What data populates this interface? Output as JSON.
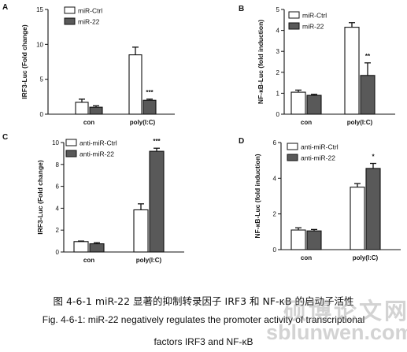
{
  "chart_data": [
    {
      "type": "bar",
      "panel_label": "A",
      "ylabel": "IRF3-Luc (Fold change)",
      "categories": [
        "con",
        "poly(I:C)"
      ],
      "ylim": [
        0,
        15
      ],
      "yticks": [
        0,
        5,
        10,
        15
      ],
      "series": [
        {
          "name": "miR-Ctrl",
          "fill": "#ffffff",
          "values": [
            1.7,
            8.5
          ],
          "errors": [
            0.45,
            1.1
          ]
        },
        {
          "name": "miR-22",
          "fill": "#595959",
          "values": [
            1.0,
            2.0
          ],
          "errors": [
            0.2,
            0.15
          ]
        }
      ],
      "annotations": [
        {
          "series": 1,
          "category": 1,
          "text": "***"
        }
      ],
      "legend_position": "top-left"
    },
    {
      "type": "bar",
      "panel_label": "B",
      "ylabel": "NF-κB-Luc (fold induction)",
      "categories": [
        "con",
        "poly(I:C)"
      ],
      "ylim": [
        0,
        5
      ],
      "yticks": [
        0,
        1,
        2,
        3,
        4,
        5
      ],
      "series": [
        {
          "name": "miR-Ctrl",
          "fill": "#ffffff",
          "values": [
            1.05,
            4.15
          ],
          "errors": [
            0.1,
            0.22
          ]
        },
        {
          "name": "miR-22",
          "fill": "#595959",
          "values": [
            0.9,
            1.85
          ],
          "errors": [
            0.05,
            0.6
          ]
        }
      ],
      "annotations": [
        {
          "series": 1,
          "category": 1,
          "text": "**"
        }
      ],
      "legend_position": "top-left"
    },
    {
      "type": "bar",
      "panel_label": "C",
      "ylabel": "IRF3-Luc (Fold change)",
      "categories": [
        "con",
        "poly(I:C)"
      ],
      "ylim": [
        0,
        10
      ],
      "yticks": [
        0,
        2,
        4,
        6,
        8,
        10
      ],
      "series": [
        {
          "name": "anti-miR-Ctrl",
          "fill": "#ffffff",
          "values": [
            0.95,
            3.85
          ],
          "errors": [
            0.05,
            0.55
          ]
        },
        {
          "name": "anti-miR-22",
          "fill": "#595959",
          "values": [
            0.75,
            9.2
          ],
          "errors": [
            0.1,
            0.28
          ]
        }
      ],
      "annotations": [
        {
          "series": 1,
          "category": 1,
          "text": "***"
        }
      ],
      "legend_position": "top-left"
    },
    {
      "type": "bar",
      "panel_label": "D",
      "ylabel": "NF-κB-Luc (fold induction)",
      "categories": [
        "con",
        "poly(I:C)"
      ],
      "ylim": [
        0,
        6
      ],
      "yticks": [
        0,
        2,
        4,
        6
      ],
      "series": [
        {
          "name": "anti-miR-Ctrl",
          "fill": "#ffffff",
          "values": [
            1.1,
            3.5
          ],
          "errors": [
            0.12,
            0.2
          ]
        },
        {
          "name": "anti-miR-22",
          "fill": "#595959",
          "values": [
            1.05,
            4.55
          ],
          "errors": [
            0.08,
            0.28
          ]
        }
      ],
      "annotations": [
        {
          "series": 1,
          "category": 1,
          "text": "*"
        }
      ],
      "legend_position": "top-left"
    }
  ],
  "caption": {
    "line1": "图 4-6-1 miR-22 显著的抑制转录因子 IRF3 和 NF-κB 的启动子活性",
    "line2": "Fig. 4-6-1: miR-22 negatively regulates the promoter activity of transcriptional",
    "line3": "factors IRF3 and NF-κB"
  },
  "watermark": {
    "text1": "硕博论文网",
    "text2": "sblunwen.com"
  }
}
